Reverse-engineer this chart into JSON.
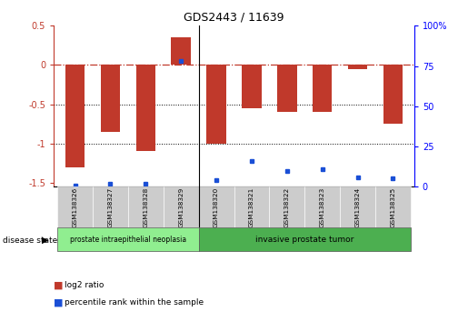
{
  "title": "GDS2443 / 11639",
  "samples": [
    "GSM138326",
    "GSM138327",
    "GSM138328",
    "GSM138329",
    "GSM138320",
    "GSM138321",
    "GSM138322",
    "GSM138323",
    "GSM138324",
    "GSM138325"
  ],
  "log2_ratio": [
    -1.3,
    -0.85,
    -1.1,
    0.35,
    -1.0,
    -0.55,
    -0.6,
    -0.6,
    -0.05,
    -0.75
  ],
  "percentile_rank": [
    1,
    2,
    2,
    78,
    4,
    16,
    10,
    11,
    6,
    5
  ],
  "bar_color": "#c0392b",
  "dot_color": "#1a4fd6",
  "ylim_left": [
    -1.55,
    0.5
  ],
  "ylim_right": [
    0,
    100
  ],
  "yticks_left": [
    -1.5,
    -1.0,
    -0.5,
    0.0,
    0.5
  ],
  "yticks_right": [
    0,
    25,
    50,
    75,
    100
  ],
  "dotted_lines": [
    -0.5,
    -1.0
  ],
  "disease_groups": [
    {
      "label": "prostate intraepithelial neoplasia",
      "color": "#90ee90",
      "start": 0,
      "end": 4
    },
    {
      "label": "invasive prostate tumor",
      "color": "#4CAF50",
      "start": 4,
      "end": 10
    }
  ],
  "legend_items": [
    {
      "label": "log2 ratio",
      "color": "#c0392b"
    },
    {
      "label": "percentile rank within the sample",
      "color": "#1a4fd6"
    }
  ],
  "disease_state_label": "disease state",
  "background_color": "#ffffff",
  "bar_width": 0.55,
  "group_separator": 3.5
}
